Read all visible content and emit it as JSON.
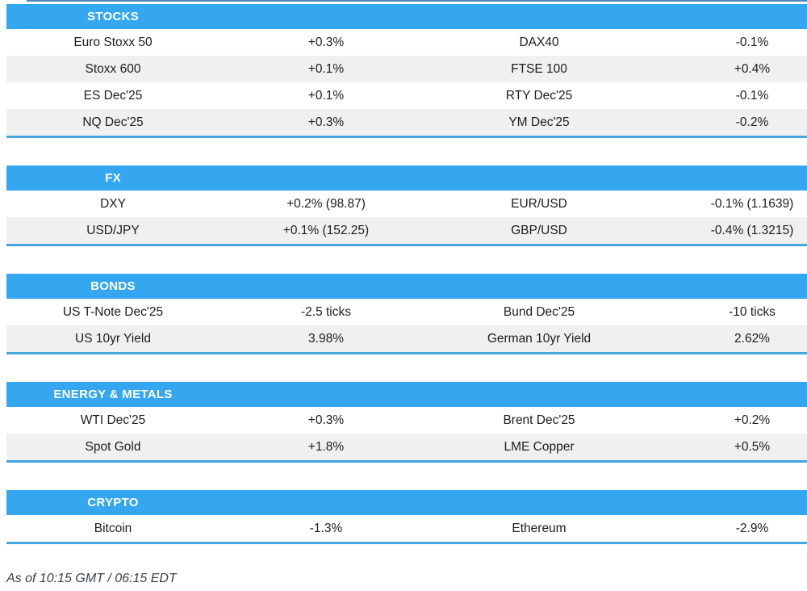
{
  "colors": {
    "accent": "#35a7f0",
    "divider": "#45a5de",
    "top_line": "#4e86b8",
    "row_alt": "#f0f0f1",
    "text": "#1c1c1c",
    "header_text": "#ffffff",
    "footer_text": "#39404a"
  },
  "footer": "As of 10:15 GMT / 06:15 EDT",
  "chart_data": [
    {
      "type": "table",
      "title": "STOCKS",
      "rows": [
        [
          "Euro Stoxx 50",
          "+0.3%",
          "DAX40",
          "-0.1%"
        ],
        [
          "Stoxx 600",
          "+0.1%",
          "FTSE 100",
          "+0.4%"
        ],
        [
          "ES Dec'25",
          "+0.1%",
          "RTY Dec'25",
          "-0.1%"
        ],
        [
          "NQ Dec'25",
          "+0.3%",
          "YM Dec'25",
          "-0.2%"
        ]
      ]
    },
    {
      "type": "table",
      "title": "FX",
      "rows": [
        [
          "DXY",
          "+0.2% (98.87)",
          "EUR/USD",
          "-0.1% (1.1639)"
        ],
        [
          "USD/JPY",
          "+0.1% (152.25)",
          "GBP/USD",
          "-0.4% (1.3215)"
        ]
      ]
    },
    {
      "type": "table",
      "title": "BONDS",
      "rows": [
        [
          "US T-Note Dec'25",
          "-2.5 ticks",
          "Bund Dec'25",
          "-10 ticks"
        ],
        [
          "US 10yr Yield",
          "3.98%",
          "German 10yr Yield",
          "2.62%"
        ]
      ]
    },
    {
      "type": "table",
      "title": "ENERGY & METALS",
      "rows": [
        [
          "WTI Dec'25",
          "+0.3%",
          "Brent Dec'25",
          "+0.2%"
        ],
        [
          "Spot Gold",
          "+1.8%",
          "LME Copper",
          "+0.5%"
        ]
      ]
    },
    {
      "type": "table",
      "title": "CRYPTO",
      "rows": [
        [
          "Bitcoin",
          "-1.3%",
          "Ethereum",
          "-2.9%"
        ]
      ]
    }
  ]
}
